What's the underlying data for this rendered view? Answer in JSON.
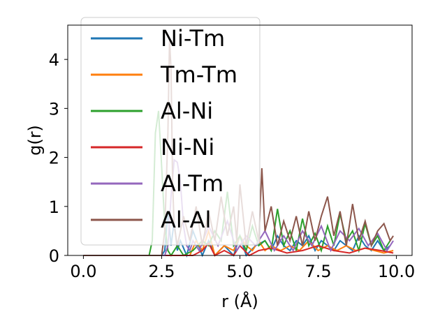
{
  "chart_data": {
    "type": "line",
    "xlabel": "r (Å)",
    "ylabel": "g(r)",
    "xlim": [
      -0.5,
      10.5
    ],
    "ylim": [
      0,
      4.7
    ],
    "xticks": [
      "0.0",
      "2.5",
      "5.0",
      "7.5",
      "10.0"
    ],
    "yticks": [
      "0",
      "1",
      "2",
      "3",
      "4"
    ],
    "grid": false,
    "legend_placement": "upper-left",
    "series": [
      {
        "name": "Ni-Tm",
        "color": "#1f77b4",
        "x": [
          0,
          0.5,
          1,
          1.5,
          2,
          2.5,
          2.6,
          2.7,
          2.8,
          2.9,
          3.0,
          3.1,
          3.3,
          3.5,
          3.8,
          4.0,
          4.2,
          4.5,
          4.8,
          5.0,
          5.2,
          5.5,
          5.8,
          6.0,
          6.2,
          6.4,
          6.6,
          6.8,
          7.0,
          7.2,
          7.4,
          7.6,
          7.8,
          8.0,
          8.2,
          8.4,
          8.6,
          8.8,
          9.0,
          9.2,
          9.4,
          9.6,
          9.8
        ],
        "y": [
          0,
          0,
          0,
          0,
          0,
          0,
          0.1,
          0.9,
          0.2,
          0.7,
          0.1,
          0.3,
          0,
          0.5,
          0,
          0.3,
          0,
          0.2,
          0,
          0.4,
          0,
          0.2,
          0.3,
          0.1,
          0.4,
          0.2,
          0.1,
          0.3,
          0.2,
          0.4,
          0.1,
          0.3,
          0.2,
          0.1,
          0.3,
          0.2,
          0.1,
          0.4,
          0.2,
          0.1,
          0.3,
          0.1,
          0.2
        ]
      },
      {
        "name": "Tm-Tm",
        "color": "#ff7f0e",
        "x": [
          0,
          1,
          2,
          3,
          3.4,
          3.6,
          3.8,
          4.0,
          4.2,
          4.5,
          4.8,
          5.0,
          5.2,
          5.4,
          5.6,
          5.8,
          6.0,
          6.3,
          6.6,
          6.9,
          7.2,
          7.5,
          7.8,
          8.1,
          8.4,
          8.7,
          9.0,
          9.3,
          9.6,
          9.9
        ],
        "y": [
          0,
          0,
          0,
          0,
          0,
          0.3,
          0.1,
          0.5,
          0,
          0.2,
          0.1,
          0.4,
          0.2,
          0.1,
          0.3,
          0.1,
          0.2,
          0.1,
          0.2,
          0.1,
          0.3,
          0.1,
          0.2,
          0.1,
          0.2,
          0.1,
          0.15,
          0.1,
          0.05,
          0.1
        ]
      },
      {
        "name": "Al-Ni",
        "color": "#2ca02c",
        "x": [
          0,
          1,
          2,
          2.1,
          2.2,
          2.3,
          2.4,
          2.5,
          2.6,
          2.7,
          2.8,
          3.0,
          3.2,
          3.5,
          3.8,
          4.0,
          4.2,
          4.4,
          4.6,
          4.8,
          5.0,
          5.2,
          5.4,
          5.6,
          5.8,
          6.0,
          6.2,
          6.4,
          6.6,
          6.8,
          7.0,
          7.2,
          7.4,
          7.6,
          7.8,
          8.0,
          8.2,
          8.4,
          8.6,
          8.8,
          9.0,
          9.2,
          9.4,
          9.6,
          9.8
        ],
        "y": [
          0,
          0,
          0,
          0,
          0.3,
          2.5,
          2.95,
          1.8,
          0.6,
          0.1,
          0,
          0.2,
          0,
          0.1,
          0.3,
          0.2,
          0.5,
          0.3,
          1.3,
          0.2,
          0.4,
          0.1,
          0.6,
          0.2,
          0.3,
          0.1,
          0.95,
          0.2,
          0.5,
          0.1,
          0.75,
          0.2,
          0.45,
          0.1,
          0.6,
          0.2,
          0.85,
          0.3,
          0.5,
          0.1,
          0.65,
          0.2,
          0.4,
          0.1,
          0.3
        ]
      },
      {
        "name": "Ni-Ni",
        "color": "#d62728",
        "x": [
          0,
          1,
          2,
          3,
          3.5,
          3.8,
          4.0,
          4.2,
          4.5,
          4.8,
          5.0,
          5.3,
          5.6,
          6.0,
          6.5,
          7.0,
          7.5,
          8.0,
          8.5,
          9.0,
          9.5,
          9.9
        ],
        "y": [
          0,
          0,
          0,
          0,
          0,
          0.1,
          0.25,
          0,
          0.1,
          0,
          0.2,
          0,
          0.1,
          0.15,
          0.05,
          0.1,
          0.2,
          0.1,
          0.05,
          0.15,
          0.1,
          0.05
        ]
      },
      {
        "name": "Al-Tm",
        "color": "#9467bd",
        "x": [
          0,
          1,
          2,
          2.6,
          2.7,
          2.8,
          2.9,
          3.0,
          3.1,
          3.2,
          3.3,
          3.4,
          3.5,
          3.7,
          4.0,
          4.3,
          4.6,
          4.9,
          5.2,
          5.5,
          5.8,
          6.1,
          6.4,
          6.7,
          7.0,
          7.3,
          7.6,
          7.9,
          8.2,
          8.5,
          8.8,
          9.1,
          9.4,
          9.7,
          9.9
        ],
        "y": [
          0,
          0,
          0,
          0,
          0.2,
          1.2,
          1.95,
          1.9,
          1.5,
          0.6,
          0.2,
          0.1,
          0.3,
          0.1,
          0.6,
          0.2,
          0.7,
          0.1,
          0.4,
          0.2,
          0.5,
          0.1,
          0.4,
          0.1,
          0.5,
          0.2,
          0.6,
          0.1,
          0.5,
          0.3,
          0.55,
          0.2,
          0.45,
          0.1,
          0.3
        ]
      },
      {
        "name": "Al-Al",
        "color": "#8c564b",
        "x": [
          0,
          1,
          2,
          2.5,
          2.6,
          2.7,
          2.75,
          2.8,
          2.85,
          2.9,
          3.0,
          3.2,
          3.4,
          3.6,
          3.8,
          4.0,
          4.2,
          4.4,
          4.6,
          4.8,
          4.9,
          5.0,
          5.2,
          5.4,
          5.6,
          5.7,
          5.8,
          6.0,
          6.2,
          6.4,
          6.6,
          6.8,
          7.0,
          7.2,
          7.4,
          7.6,
          7.8,
          8.0,
          8.2,
          8.4,
          8.6,
          8.8,
          9.0,
          9.2,
          9.4,
          9.6,
          9.8,
          9.9
        ],
        "y": [
          0,
          0,
          0,
          0,
          0.5,
          2.5,
          4.4,
          3.8,
          1.5,
          0.6,
          0.2,
          0.8,
          0.3,
          1.0,
          0.2,
          0.9,
          0.3,
          1.2,
          0.4,
          1.0,
          0.3,
          1.45,
          0.2,
          0.9,
          0.3,
          1.78,
          0.5,
          1.0,
          0.2,
          0.7,
          0.3,
          0.8,
          0.2,
          0.9,
          0.3,
          0.8,
          1.2,
          0.4,
          0.9,
          0.2,
          1.05,
          0.3,
          0.7,
          0.2,
          0.5,
          0.65,
          0.3,
          0.4
        ]
      }
    ]
  }
}
